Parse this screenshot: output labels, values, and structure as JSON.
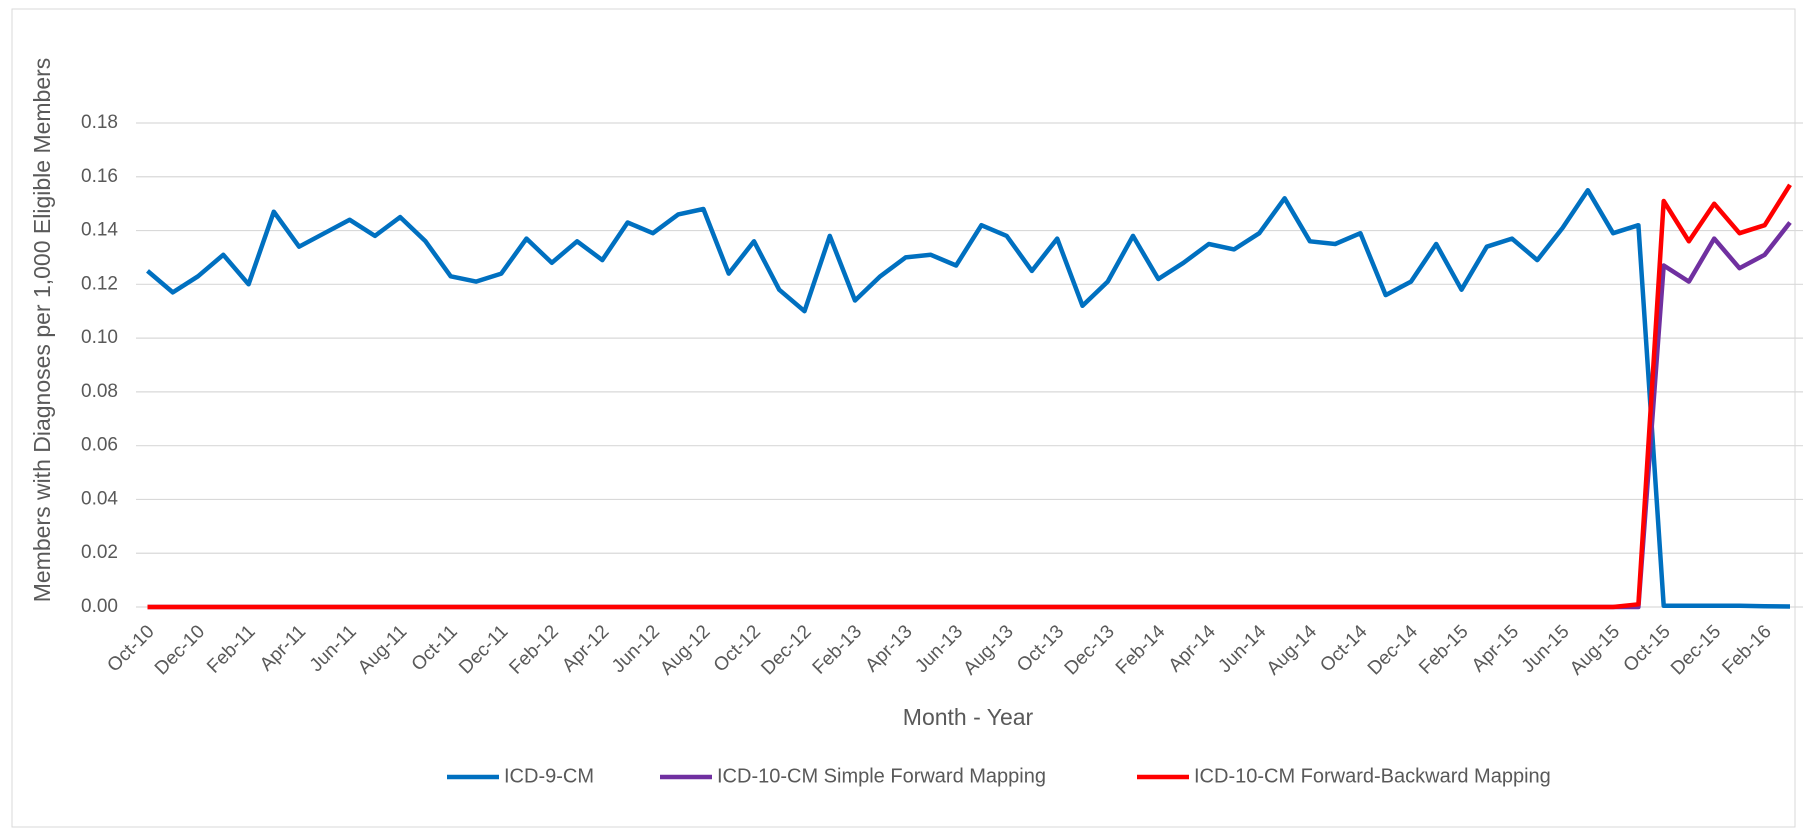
{
  "chart_data": {
    "type": "line",
    "xlabel": "Month - Year",
    "ylabel": "Members with Diagnoses per 1,000 Eligible Members",
    "categories": [
      "Oct-10",
      null,
      "Dec-10",
      null,
      "Feb-11",
      null,
      "Apr-11",
      null,
      "Jun-11",
      null,
      "Aug-11",
      null,
      "Oct-11",
      null,
      "Dec-11",
      null,
      "Feb-12",
      null,
      "Apr-12",
      null,
      "Jun-12",
      null,
      "Aug-12",
      null,
      "Oct-12",
      null,
      "Dec-12",
      null,
      "Feb-13",
      null,
      "Apr-13",
      null,
      "Jun-13",
      null,
      "Aug-13",
      null,
      "Oct-13",
      null,
      "Dec-13",
      null,
      "Feb-14",
      null,
      "Apr-14",
      null,
      "Jun-14",
      null,
      "Aug-14",
      null,
      "Oct-14",
      null,
      "Dec-14",
      null,
      "Feb-15",
      null,
      "Apr-15",
      null,
      "Jun-15",
      null,
      "Aug-15",
      null,
      "Oct-15",
      null,
      "Dec-15",
      null,
      "Feb-16",
      null
    ],
    "series": [
      {
        "name": "ICD-9-CM",
        "color": "#0070c0",
        "values": [
          0.125,
          0.117,
          0.123,
          0.131,
          0.12,
          0.147,
          0.134,
          0.139,
          0.144,
          0.138,
          0.145,
          0.136,
          0.123,
          0.121,
          0.124,
          0.137,
          0.128,
          0.136,
          0.129,
          0.143,
          0.139,
          0.146,
          0.148,
          0.124,
          0.136,
          0.118,
          0.11,
          0.138,
          0.114,
          0.123,
          0.13,
          0.131,
          0.127,
          0.142,
          0.138,
          0.125,
          0.137,
          0.112,
          0.121,
          0.138,
          0.122,
          0.128,
          0.135,
          0.133,
          0.139,
          0.152,
          0.136,
          0.135,
          0.139,
          0.116,
          0.121,
          0.135,
          0.118,
          0.134,
          0.137,
          0.129,
          0.141,
          0.155,
          0.139,
          0.142,
          0.0005,
          0.0005,
          0.0005,
          0.0005,
          0.0003,
          0.0002
        ]
      },
      {
        "name": "ICD-10-CM Simple Forward Mapping",
        "color": "#7030a0",
        "values": [
          0,
          0,
          0,
          0,
          0,
          0,
          0,
          0,
          0,
          0,
          0,
          0,
          0,
          0,
          0,
          0,
          0,
          0,
          0,
          0,
          0,
          0,
          0,
          0,
          0,
          0,
          0,
          0,
          0,
          0,
          0,
          0,
          0,
          0,
          0,
          0,
          0,
          0,
          0,
          0,
          0,
          0,
          0,
          0,
          0,
          0,
          0,
          0,
          0,
          0,
          0,
          0,
          0,
          0,
          0,
          0,
          0,
          0,
          0,
          0,
          0.127,
          0.121,
          0.137,
          0.126,
          0.131,
          0.143
        ]
      },
      {
        "name": "ICD-10-CM Forward-Backward Mapping",
        "color": "#ff0000",
        "values": [
          0,
          0,
          0,
          0,
          0,
          0,
          0,
          0,
          0,
          0,
          0,
          0,
          0,
          0,
          0,
          0,
          0,
          0,
          0,
          0,
          0,
          0,
          0,
          0,
          0,
          0,
          0,
          0,
          0,
          0,
          0,
          0,
          0,
          0,
          0,
          0,
          0,
          0,
          0,
          0,
          0,
          0,
          0,
          0,
          0,
          0,
          0,
          0,
          0,
          0,
          0,
          0,
          0,
          0,
          0,
          0,
          0,
          0,
          0,
          0.001,
          0.151,
          0.136,
          0.15,
          0.139,
          0.142,
          0.157
        ]
      }
    ],
    "ylim": [
      0,
      0.18
    ],
    "yticks": [
      {
        "value": 0,
        "label": "0.00"
      },
      0.02,
      0.04,
      0.06,
      0.08,
      {
        "value": 0.1,
        "label": "0.10"
      },
      0.12,
      0.14,
      0.16,
      0.18
    ],
    "grid": true,
    "legend": "bottom"
  }
}
